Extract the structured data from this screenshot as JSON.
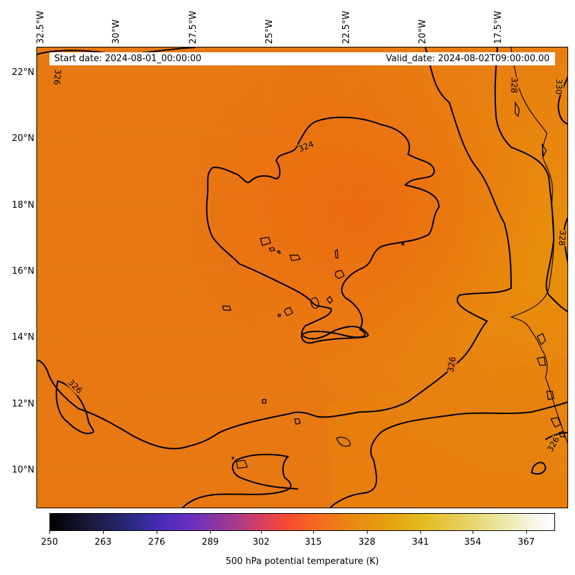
{
  "map": {
    "info": {
      "start_date": "Start date: 2024-08-01_00:00:00",
      "valid_date": "Valid_date: 2024-08-02T09:00:00.00"
    },
    "lon_labels": [
      "32.5°W",
      "30°W",
      "27.5°W",
      "25°W",
      "22.5°W",
      "20°W",
      "17.5°W"
    ],
    "lat_labels": [
      "22°N",
      "20°N",
      "18°N",
      "16°N",
      "14°N",
      "12°N",
      "10°N"
    ],
    "contour_labels": [
      "326",
      "324",
      "328",
      "330",
      "328",
      "326",
      "326",
      "326"
    ],
    "colors": {
      "field_base": "#e87411",
      "field_warm": "#ea8108",
      "core": "#ec6c10",
      "contour": "#000000"
    }
  },
  "colorbar": {
    "ticks": [
      "250",
      "263",
      "276",
      "289",
      "302",
      "315",
      "328",
      "341",
      "354",
      "367"
    ],
    "title": "500 hPa potential temperature (K)",
    "range": [
      250,
      372
    ],
    "colormap": "CMRmap"
  }
}
